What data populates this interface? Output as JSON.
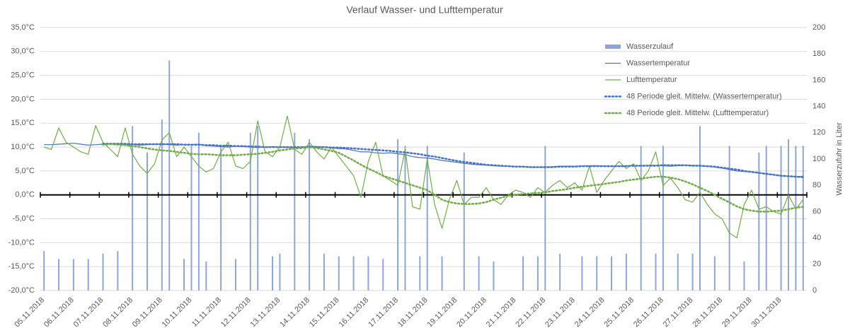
{
  "chart_data": {
    "type": "combo",
    "title": "Verlauf Wasser- und Lufttemperatur",
    "y2label": "Wasserzufuhr in Liter",
    "categories": [
      "05.11.2018",
      null,
      null,
      null,
      "06.11.2018",
      null,
      null,
      null,
      "07.11.2018",
      null,
      null,
      null,
      "08.11.2018",
      null,
      null,
      null,
      "09.11.2018",
      null,
      null,
      null,
      "10.11.2018",
      null,
      null,
      null,
      "11.11.2018",
      null,
      null,
      null,
      "12.11.2018",
      null,
      null,
      null,
      "13.11.2018",
      null,
      null,
      null,
      "14.11.2018",
      null,
      null,
      null,
      "15.11.2018",
      null,
      null,
      null,
      "16.11.2018",
      null,
      null,
      null,
      "17.11.2018",
      null,
      null,
      null,
      "18.11.2018",
      null,
      null,
      null,
      "19.11.2018",
      null,
      null,
      null,
      "20.11.2018",
      null,
      null,
      null,
      "21.11.2018",
      null,
      null,
      null,
      "22.11.2018",
      null,
      null,
      null,
      "23.11.2018",
      null,
      null,
      null,
      "24.11.2018",
      null,
      null,
      null,
      "25.11.2018",
      null,
      null,
      null,
      "26.11.2018",
      null,
      null,
      null,
      "27.11.2018",
      null,
      null,
      null,
      "28.11.2018",
      null,
      null,
      null,
      "29.11.2018",
      null,
      null,
      null,
      "30.11.2018",
      null,
      null,
      null
    ],
    "ylim": [
      -20,
      35
    ],
    "yticks": [
      {
        "value": -20,
        "label": "-20,0°C"
      },
      {
        "value": -15,
        "label": "-15,0°C"
      },
      {
        "value": -10,
        "label": "-10,0°C"
      },
      {
        "value": -5,
        "label": "-5,0°C"
      },
      {
        "value": 0,
        "label": "0,0°C"
      },
      {
        "value": 5,
        "label": "5,0°C"
      },
      {
        "value": 10,
        "label": "10,0°C"
      },
      {
        "value": 15,
        "label": "15,0°C"
      },
      {
        "value": 20,
        "label": "20,0°C"
      },
      {
        "value": 25,
        "label": "25,0°C"
      },
      {
        "value": 30,
        "label": "30,0°C"
      },
      {
        "value": 35,
        "label": "35,0°C"
      }
    ],
    "y2lim": [
      0,
      200
    ],
    "y2ticks": [
      0,
      20,
      40,
      60,
      80,
      100,
      120,
      140,
      160,
      180,
      200
    ],
    "grid": true,
    "legend": "upper right",
    "series": [
      {
        "name": "Wasserzulauf",
        "type": "bar",
        "axis": "y2",
        "color": "#8ea6d4",
        "values": [
          30,
          0,
          24,
          0,
          24,
          0,
          24,
          0,
          28,
          0,
          30,
          0,
          125,
          0,
          105,
          0,
          130,
          175,
          0,
          24,
          110,
          120,
          22,
          0,
          110,
          0,
          24,
          0,
          120,
          125,
          0,
          26,
          28,
          0,
          120,
          0,
          115,
          0,
          28,
          0,
          26,
          0,
          26,
          0,
          26,
          0,
          24,
          0,
          115,
          110,
          0,
          26,
          110,
          0,
          26,
          0,
          0,
          105,
          0,
          26,
          0,
          22,
          0,
          0,
          0,
          26,
          0,
          26,
          110,
          0,
          28,
          0,
          0,
          26,
          0,
          26,
          0,
          26,
          0,
          28,
          0,
          110,
          0,
          28,
          110,
          0,
          28,
          0,
          28,
          125,
          0,
          26,
          0,
          110,
          0,
          22,
          0,
          105,
          110,
          0,
          110,
          115,
          110,
          110
        ]
      },
      {
        "name": "Wassertemperatur",
        "type": "line",
        "color": "#4472c4",
        "values": [
          10.5,
          10.5,
          10.6,
          10.7,
          10.8,
          10.6,
          10.4,
          10.5,
          10.6,
          10.7,
          10.6,
          10.5,
          10.5,
          10.4,
          10.5,
          10.6,
          10.6,
          10.5,
          10.4,
          10.5,
          10.5,
          10.6,
          10.3,
          10.2,
          10.1,
          10.0,
          10.2,
          10.1,
          10.0,
          9.9,
          10.0,
          10.1,
          10.0,
          9.9,
          9.9,
          10.0,
          10.2,
          10.1,
          10.0,
          9.8,
          9.7,
          9.6,
          9.3,
          9.0,
          9.0,
          8.8,
          8.7,
          8.8,
          8.6,
          8.4,
          8.0,
          7.8,
          7.7,
          7.5,
          7.2,
          7.0,
          6.8,
          6.6,
          6.4,
          6.3,
          6.2,
          6.1,
          6.0,
          6.0,
          5.9,
          5.9,
          5.8,
          5.8,
          5.8,
          5.9,
          6.0,
          6.0,
          6.0,
          6.0,
          6.1,
          6.1,
          6.0,
          6.0,
          6.0,
          6.1,
          6.1,
          6.1,
          6.2,
          6.2,
          6.1,
          6.0,
          6.1,
          6.2,
          6.2,
          6.1,
          6.0,
          5.8,
          5.6,
          5.3,
          5.0,
          4.9,
          4.8,
          4.6,
          4.4,
          4.2,
          4.0,
          3.9,
          3.8,
          3.9
        ]
      },
      {
        "name": "Lufttemperatur",
        "type": "line",
        "color": "#70ad47",
        "values": [
          10,
          9.5,
          14,
          11,
          10,
          9,
          8.5,
          14.5,
          11,
          9.5,
          8,
          14,
          8.5,
          6,
          4.5,
          6.5,
          11.5,
          13,
          8,
          10,
          8,
          6,
          4.8,
          5.5,
          9,
          11,
          6,
          5.5,
          7,
          15.5,
          9,
          8,
          10,
          16.5,
          9.5,
          8.5,
          11,
          9,
          7.5,
          10,
          8,
          6,
          4,
          -0.5,
          7,
          11,
          4,
          3,
          2,
          9.5,
          -2.5,
          -3,
          7.5,
          -2,
          -7,
          -1,
          3,
          -2,
          -0.5,
          -0.5,
          1.5,
          -1,
          -2,
          0,
          1,
          0.5,
          -0.5,
          1.5,
          0.5,
          2,
          3,
          1.5,
          2.5,
          1,
          6,
          0.5,
          3,
          5,
          7,
          5.5,
          6.5,
          3,
          5,
          9,
          2,
          3.5,
          1.5,
          -1,
          -1.5,
          0.5,
          -2,
          -4,
          -5,
          -8,
          -9,
          -2,
          1,
          -3,
          -2.5,
          -3.5,
          -4,
          0,
          -3,
          -1
        ]
      },
      {
        "name": "48 Periode gleit. Mittelw. (Wassertemperatur)",
        "type": "line",
        "dash": "dotted",
        "color": "#4472c4",
        "values": [
          null,
          null,
          null,
          null,
          null,
          null,
          null,
          null,
          10.7,
          10.7,
          10.7,
          10.7,
          10.6,
          10.6,
          10.6,
          10.6,
          10.6,
          10.6,
          10.6,
          10.5,
          10.5,
          10.5,
          10.4,
          10.4,
          10.3,
          10.3,
          10.2,
          10.2,
          10.1,
          10.1,
          10.0,
          10.0,
          10.0,
          10.0,
          10.0,
          10.0,
          10.0,
          10.0,
          10.0,
          9.9,
          9.9,
          9.8,
          9.7,
          9.6,
          9.5,
          9.4,
          9.3,
          9.2,
          9.0,
          8.9,
          8.7,
          8.5,
          8.2,
          8.0,
          7.7,
          7.4,
          7.1,
          6.9,
          6.7,
          6.5,
          6.3,
          6.2,
          6.1,
          6.0,
          5.9,
          5.9,
          5.8,
          5.8,
          5.8,
          5.8,
          5.9,
          5.9,
          5.9,
          6.0,
          6.0,
          6.0,
          6.0,
          6.0,
          6.0,
          6.0,
          6.1,
          6.1,
          6.1,
          6.1,
          6.2,
          6.2,
          6.2,
          6.2,
          6.1,
          6.1,
          6.0,
          5.9,
          5.7,
          5.5,
          5.3,
          5.0,
          4.8,
          4.6,
          4.4,
          4.2,
          4.0,
          3.9,
          3.8,
          3.7
        ]
      },
      {
        "name": "48 Periode gleit. Mittelw. (Lufttemperatur)",
        "type": "line",
        "dash": "dotted",
        "color": "#70ad47",
        "values": [
          null,
          null,
          null,
          null,
          null,
          null,
          null,
          null,
          10.5,
          10.6,
          10.5,
          10.4,
          10.2,
          10,
          9.7,
          9.5,
          9.3,
          9.2,
          9.0,
          8.8,
          8.6,
          8.5,
          8.5,
          8.4,
          8.3,
          8.3,
          8.3,
          8.4,
          8.5,
          8.6,
          8.8,
          9.0,
          9.3,
          9.5,
          9.7,
          9.8,
          10,
          9.8,
          9.5,
          9.2,
          8.8,
          8.0,
          7.2,
          6.3,
          5.5,
          4.8,
          4.0,
          3.5,
          3.0,
          2.5,
          2.0,
          1.5,
          1.0,
          0,
          -1,
          -1.5,
          -1.8,
          -1.9,
          -1.9,
          -1.8,
          -1.5,
          -1.0,
          -0.6,
          -0.2,
          0,
          0.2,
          0.3,
          0.4,
          0.5,
          0.8,
          1.0,
          1.2,
          1.5,
          1.7,
          1.9,
          2.1,
          2.3,
          2.5,
          2.7,
          3.0,
          3.2,
          3.4,
          3.6,
          3.8,
          3.8,
          3.6,
          3.3,
          2.8,
          2.2,
          1.5,
          0.8,
          0,
          -0.8,
          -1.6,
          -2.4,
          -3.0,
          -3.3,
          -3.5,
          -3.5,
          -3.4,
          -3.3,
          -3.0,
          -2.7,
          -2.5
        ]
      }
    ]
  }
}
